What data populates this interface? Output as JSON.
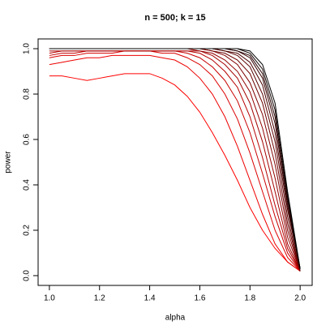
{
  "chart_data": {
    "type": "line",
    "title": "n = 500; k = 15",
    "xlabel": "alpha",
    "ylabel": "power",
    "x": [
      1,
      1.05,
      1.1,
      1.15,
      1.2,
      1.25,
      1.3,
      1.35,
      1.4,
      1.45,
      1.5,
      1.55,
      1.6,
      1.65,
      1.7,
      1.75,
      1.8,
      1.85,
      1.9,
      1.95,
      2
    ],
    "series": [
      {
        "color": "#ff0000",
        "values": [
          0.88,
          0.88,
          0.87,
          0.86,
          0.87,
          0.88,
          0.89,
          0.89,
          0.89,
          0.87,
          0.84,
          0.79,
          0.72,
          0.63,
          0.53,
          0.42,
          0.3,
          0.2,
          0.12,
          0.06,
          0.02
        ]
      },
      {
        "color": "#ed0000",
        "values": [
          0.93,
          0.94,
          0.95,
          0.96,
          0.96,
          0.97,
          0.97,
          0.97,
          0.97,
          0.96,
          0.95,
          0.92,
          0.87,
          0.8,
          0.7,
          0.57,
          0.42,
          0.27,
          0.14,
          0.06,
          0.02
        ]
      },
      {
        "color": "#da0000",
        "values": [
          0.96,
          0.97,
          0.97,
          0.98,
          0.98,
          0.98,
          0.99,
          0.99,
          0.99,
          0.98,
          0.98,
          0.96,
          0.93,
          0.88,
          0.8,
          0.69,
          0.54,
          0.37,
          0.2,
          0.08,
          0.02
        ]
      },
      {
        "color": "#c80000",
        "values": [
          0.97,
          0.98,
          0.98,
          0.99,
          0.99,
          0.99,
          0.99,
          0.99,
          0.99,
          0.99,
          0.99,
          0.98,
          0.96,
          0.92,
          0.86,
          0.77,
          0.63,
          0.45,
          0.26,
          0.1,
          0.02
        ]
      },
      {
        "color": "#b60000",
        "values": [
          0.98,
          0.99,
          0.99,
          0.99,
          0.99,
          0.99,
          0.99,
          0.99,
          0.99,
          0.99,
          0.99,
          0.99,
          0.98,
          0.95,
          0.9,
          0.83,
          0.7,
          0.52,
          0.31,
          0.12,
          0.02
        ]
      },
      {
        "color": "#a40000",
        "values": [
          0.99,
          0.99,
          0.99,
          0.99,
          0.99,
          0.99,
          0.99,
          0.99,
          0.99,
          0.99,
          0.99,
          0.99,
          0.99,
          0.97,
          0.93,
          0.87,
          0.76,
          0.59,
          0.37,
          0.14,
          0.02
        ]
      },
      {
        "color": "#920000",
        "values": [
          1,
          1,
          1,
          1,
          1,
          1,
          1,
          1,
          1,
          1,
          1,
          1,
          0.99,
          0.98,
          0.95,
          0.9,
          0.81,
          0.65,
          0.43,
          0.17,
          0.02
        ]
      },
      {
        "color": "#800000",
        "values": [
          1,
          1,
          1,
          1,
          1,
          1,
          1,
          1,
          1,
          1,
          1,
          1,
          1,
          0.99,
          0.97,
          0.93,
          0.85,
          0.71,
          0.49,
          0.2,
          0.02
        ]
      },
      {
        "color": "#6d0000",
        "values": [
          1,
          1,
          1,
          1,
          1,
          1,
          1,
          1,
          1,
          1,
          1,
          1,
          1,
          0.99,
          0.98,
          0.95,
          0.89,
          0.76,
          0.54,
          0.23,
          0.02
        ]
      },
      {
        "color": "#5b0000",
        "values": [
          1,
          1,
          1,
          1,
          1,
          1,
          1,
          1,
          1,
          1,
          1,
          1,
          1,
          1,
          0.99,
          0.97,
          0.92,
          0.8,
          0.59,
          0.26,
          0.02
        ]
      },
      {
        "color": "#490000",
        "values": [
          1,
          1,
          1,
          1,
          1,
          1,
          1,
          1,
          1,
          1,
          1,
          1,
          1,
          1,
          0.99,
          0.98,
          0.94,
          0.84,
          0.63,
          0.29,
          0.03
        ]
      },
      {
        "color": "#370000",
        "values": [
          1,
          1,
          1,
          1,
          1,
          1,
          1,
          1,
          1,
          1,
          1,
          1,
          1,
          1,
          1,
          0.99,
          0.96,
          0.87,
          0.67,
          0.31,
          0.03
        ]
      },
      {
        "color": "#240000",
        "values": [
          1,
          1,
          1,
          1,
          1,
          1,
          1,
          1,
          1,
          1,
          1,
          1,
          1,
          1,
          1,
          0.99,
          0.97,
          0.89,
          0.7,
          0.33,
          0.03
        ]
      },
      {
        "color": "#120000",
        "values": [
          1,
          1,
          1,
          1,
          1,
          1,
          1,
          1,
          1,
          1,
          1,
          1,
          1,
          1,
          1,
          1,
          0.98,
          0.91,
          0.73,
          0.35,
          0.03
        ]
      },
      {
        "color": "#000000",
        "values": [
          1,
          1,
          1,
          1,
          1,
          1,
          1,
          1,
          1,
          1,
          1,
          1,
          1,
          1,
          1,
          1,
          0.99,
          0.93,
          0.76,
          0.37,
          0.03
        ]
      }
    ],
    "xlim": [
      0.955,
      2.048
    ],
    "ylim": [
      -0.043,
      1.043
    ],
    "xticks": [
      {
        "value": 1,
        "label": "1.0"
      },
      {
        "value": 1.2,
        "label": "1.2"
      },
      {
        "value": 1.4,
        "label": "1.4"
      },
      {
        "value": 1.6,
        "label": "1.6"
      },
      {
        "value": 1.8,
        "label": "1.8"
      },
      {
        "value": 2,
        "label": "2.0"
      }
    ],
    "yticks": [
      {
        "value": 0,
        "label": "0.0"
      },
      {
        "value": 0.2,
        "label": "0.2"
      },
      {
        "value": 0.4,
        "label": "0.4"
      },
      {
        "value": 0.6,
        "label": "0.6"
      },
      {
        "value": 0.8,
        "label": "0.8"
      },
      {
        "value": 1,
        "label": "1.0"
      }
    ]
  }
}
